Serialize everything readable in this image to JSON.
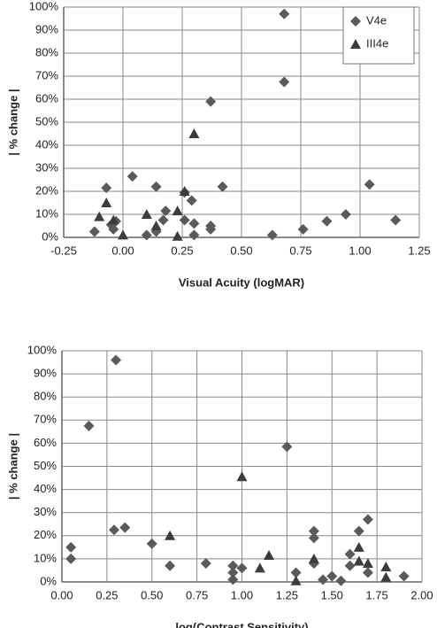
{
  "chart_data": [
    {
      "type": "scatter",
      "x_label": "Visual Acuity (logMAR)",
      "y_label": "| % change |",
      "xlim": [
        -0.25,
        1.25
      ],
      "xticks": [
        {
          "value": -0.25,
          "label": "-0.25"
        },
        {
          "value": 0,
          "label": "0.00"
        },
        {
          "value": 0.25,
          "label": "0.25"
        },
        {
          "value": 0.5,
          "label": "0.50"
        },
        {
          "value": 0.75,
          "label": "0.75"
        },
        {
          "value": 1,
          "label": "1.00"
        },
        {
          "value": 1.25,
          "label": "1.25"
        }
      ],
      "ylim": [
        0,
        100
      ],
      "yticks": [
        {
          "value": 0,
          "label": "0%"
        },
        {
          "value": 10,
          "label": "10%"
        },
        {
          "value": 20,
          "label": "20%"
        },
        {
          "value": 30,
          "label": "30%"
        },
        {
          "value": 40,
          "label": "40%"
        },
        {
          "value": 50,
          "label": "50%"
        },
        {
          "value": 60,
          "label": "60%"
        },
        {
          "value": 70,
          "label": "70%"
        },
        {
          "value": 80,
          "label": "80%"
        },
        {
          "value": 90,
          "label": "90%"
        },
        {
          "value": 100,
          "label": "100%"
        }
      ],
      "grid": true,
      "legend": "top-right",
      "series": [
        {
          "name": "V4e",
          "color": "#5a5a5a",
          "marker": "diamond",
          "x": [
            0.68,
            0.68,
            0.37,
            0.04,
            -0.07,
            0.14,
            0.42,
            1.04,
            0.26,
            0.29,
            0.18,
            0.17,
            0.26,
            0.3,
            0.37,
            0.37,
            0.3,
            0.14,
            0.1,
            -0.12,
            -0.04,
            -0.05,
            -0.03,
            0.63,
            0.76,
            0.86,
            0.94,
            1.15
          ],
          "values": [
            97,
            67.5,
            59,
            26.5,
            21.5,
            22,
            22,
            23,
            19.5,
            16,
            11.5,
            7.5,
            7.5,
            6,
            5,
            3.5,
            1,
            2.5,
            1,
            2.5,
            3.5,
            5.5,
            7,
            1,
            3.5,
            7,
            10,
            7.5
          ]
        },
        {
          "name": "III4e",
          "color": "#3c3c3c",
          "marker": "triangle",
          "x": [
            0.3,
            -0.07,
            -0.1,
            -0.04,
            0.0,
            0.1,
            0.14,
            0.23,
            0.23,
            0.26
          ],
          "values": [
            45,
            15,
            9,
            7.5,
            1,
            10,
            5,
            0.5,
            11.5,
            20
          ]
        }
      ]
    },
    {
      "type": "scatter",
      "x_label": "log(Contrast Sensitivity)",
      "y_label": "| % change |",
      "xlim": [
        0,
        2
      ],
      "xticks": [
        {
          "value": 0,
          "label": "0.00"
        },
        {
          "value": 0.25,
          "label": "0.25"
        },
        {
          "value": 0.5,
          "label": "0.50"
        },
        {
          "value": 0.75,
          "label": "0.75"
        },
        {
          "value": 1,
          "label": "1.00"
        },
        {
          "value": 1.25,
          "label": "1.25"
        },
        {
          "value": 1.5,
          "label": "1.50"
        },
        {
          "value": 1.75,
          "label": "1.75"
        },
        {
          "value": 2,
          "label": "2.00"
        }
      ],
      "ylim": [
        0,
        100
      ],
      "yticks": [
        {
          "value": 0,
          "label": "0%"
        },
        {
          "value": 10,
          "label": "10%"
        },
        {
          "value": 20,
          "label": "20%"
        },
        {
          "value": 30,
          "label": "30%"
        },
        {
          "value": 40,
          "label": "40%"
        },
        {
          "value": 50,
          "label": "50%"
        },
        {
          "value": 60,
          "label": "60%"
        },
        {
          "value": 70,
          "label": "70%"
        },
        {
          "value": 80,
          "label": "80%"
        },
        {
          "value": 90,
          "label": "90%"
        },
        {
          "value": 100,
          "label": "100%"
        }
      ],
      "grid": true,
      "legend": false,
      "series": [
        {
          "name": "V4e",
          "color": "#5a5a5a",
          "marker": "diamond",
          "x": [
            0.3,
            0.15,
            1.25,
            0.05,
            0.05,
            0.29,
            0.35,
            0.5,
            0.6,
            0.8,
            0.95,
            0.95,
            0.95,
            1.0,
            1.3,
            1.4,
            1.4,
            1.4,
            1.45,
            1.5,
            1.55,
            1.6,
            1.6,
            1.65,
            1.7,
            1.7,
            1.9
          ],
          "values": [
            96,
            67.5,
            58.5,
            15,
            10,
            22.5,
            23.5,
            16.5,
            7,
            8,
            7,
            4,
            1,
            6,
            4,
            22,
            19,
            8,
            1,
            2.5,
            0.5,
            12,
            7,
            22,
            27,
            4,
            2.5
          ]
        },
        {
          "name": "III4e",
          "color": "#3c3c3c",
          "marker": "triangle",
          "x": [
            1.0,
            0.6,
            1.15,
            1.1,
            1.3,
            1.4,
            1.65,
            1.65,
            1.7,
            1.8,
            1.8
          ],
          "values": [
            45.5,
            20,
            11.5,
            6,
            0.5,
            10,
            15,
            9,
            8,
            6.5,
            2
          ]
        }
      ]
    }
  ]
}
